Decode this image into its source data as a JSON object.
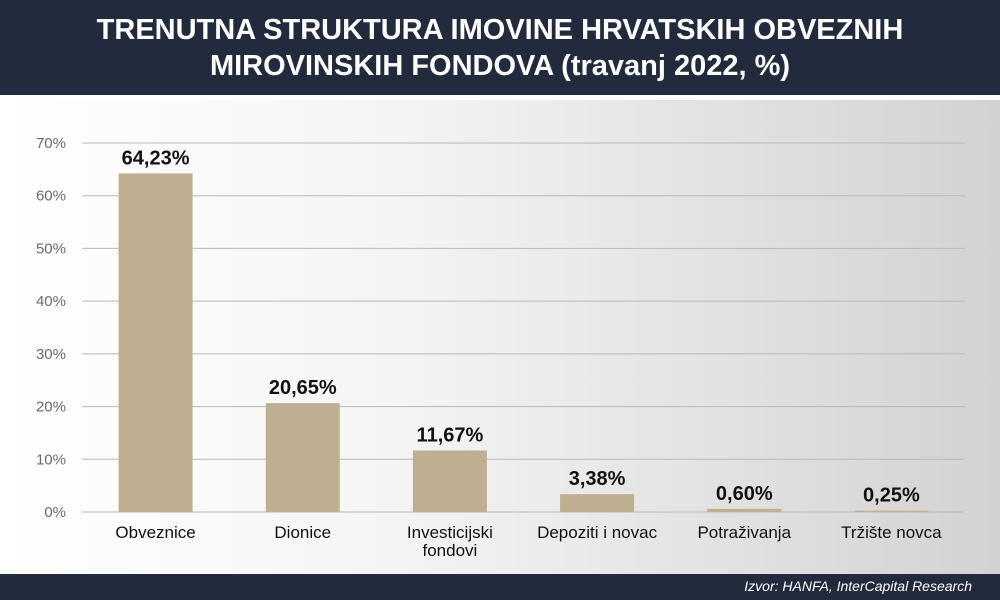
{
  "header": {
    "title_line1": "TRENUTNA STRUKTURA IMOVINE HRVATSKIH OBVEZNIH",
    "title_line2": "MIROVINSKIH FONDOVA (travanj 2022, %)"
  },
  "footer": {
    "source": "Izvor: HANFA, InterCapital Research"
  },
  "chart_data": {
    "type": "bar",
    "title": "TRENUTNA STRUKTURA IMOVINE HRVATSKIH OBVEZNIH MIROVINSKIH FONDOVA (travanj 2022, %)",
    "xlabel": "",
    "ylabel": "",
    "categories": [
      [
        "Obveznice"
      ],
      [
        "Dionice"
      ],
      [
        "Investicijski",
        "fondovi"
      ],
      [
        "Depoziti i novac"
      ],
      [
        "Potraživanja"
      ],
      [
        "Tržište novca"
      ]
    ],
    "values": [
      64.23,
      20.65,
      11.67,
      3.38,
      0.6,
      0.25
    ],
    "value_labels": [
      "64,23%",
      "20,65%",
      "11,67%",
      "3,38%",
      "0,60%",
      "0,25%"
    ],
    "ylim": [
      0,
      70
    ],
    "yticks": [
      0,
      10,
      20,
      30,
      40,
      50,
      60,
      70
    ],
    "ytick_labels": [
      "0%",
      "10%",
      "20%",
      "30%",
      "40%",
      "50%",
      "60%",
      "70%"
    ],
    "grid": true,
    "legend": "none",
    "colors": {
      "bar": "#bfae91",
      "grid": "#b8b8b8",
      "header_bg": "#222b3d"
    }
  }
}
